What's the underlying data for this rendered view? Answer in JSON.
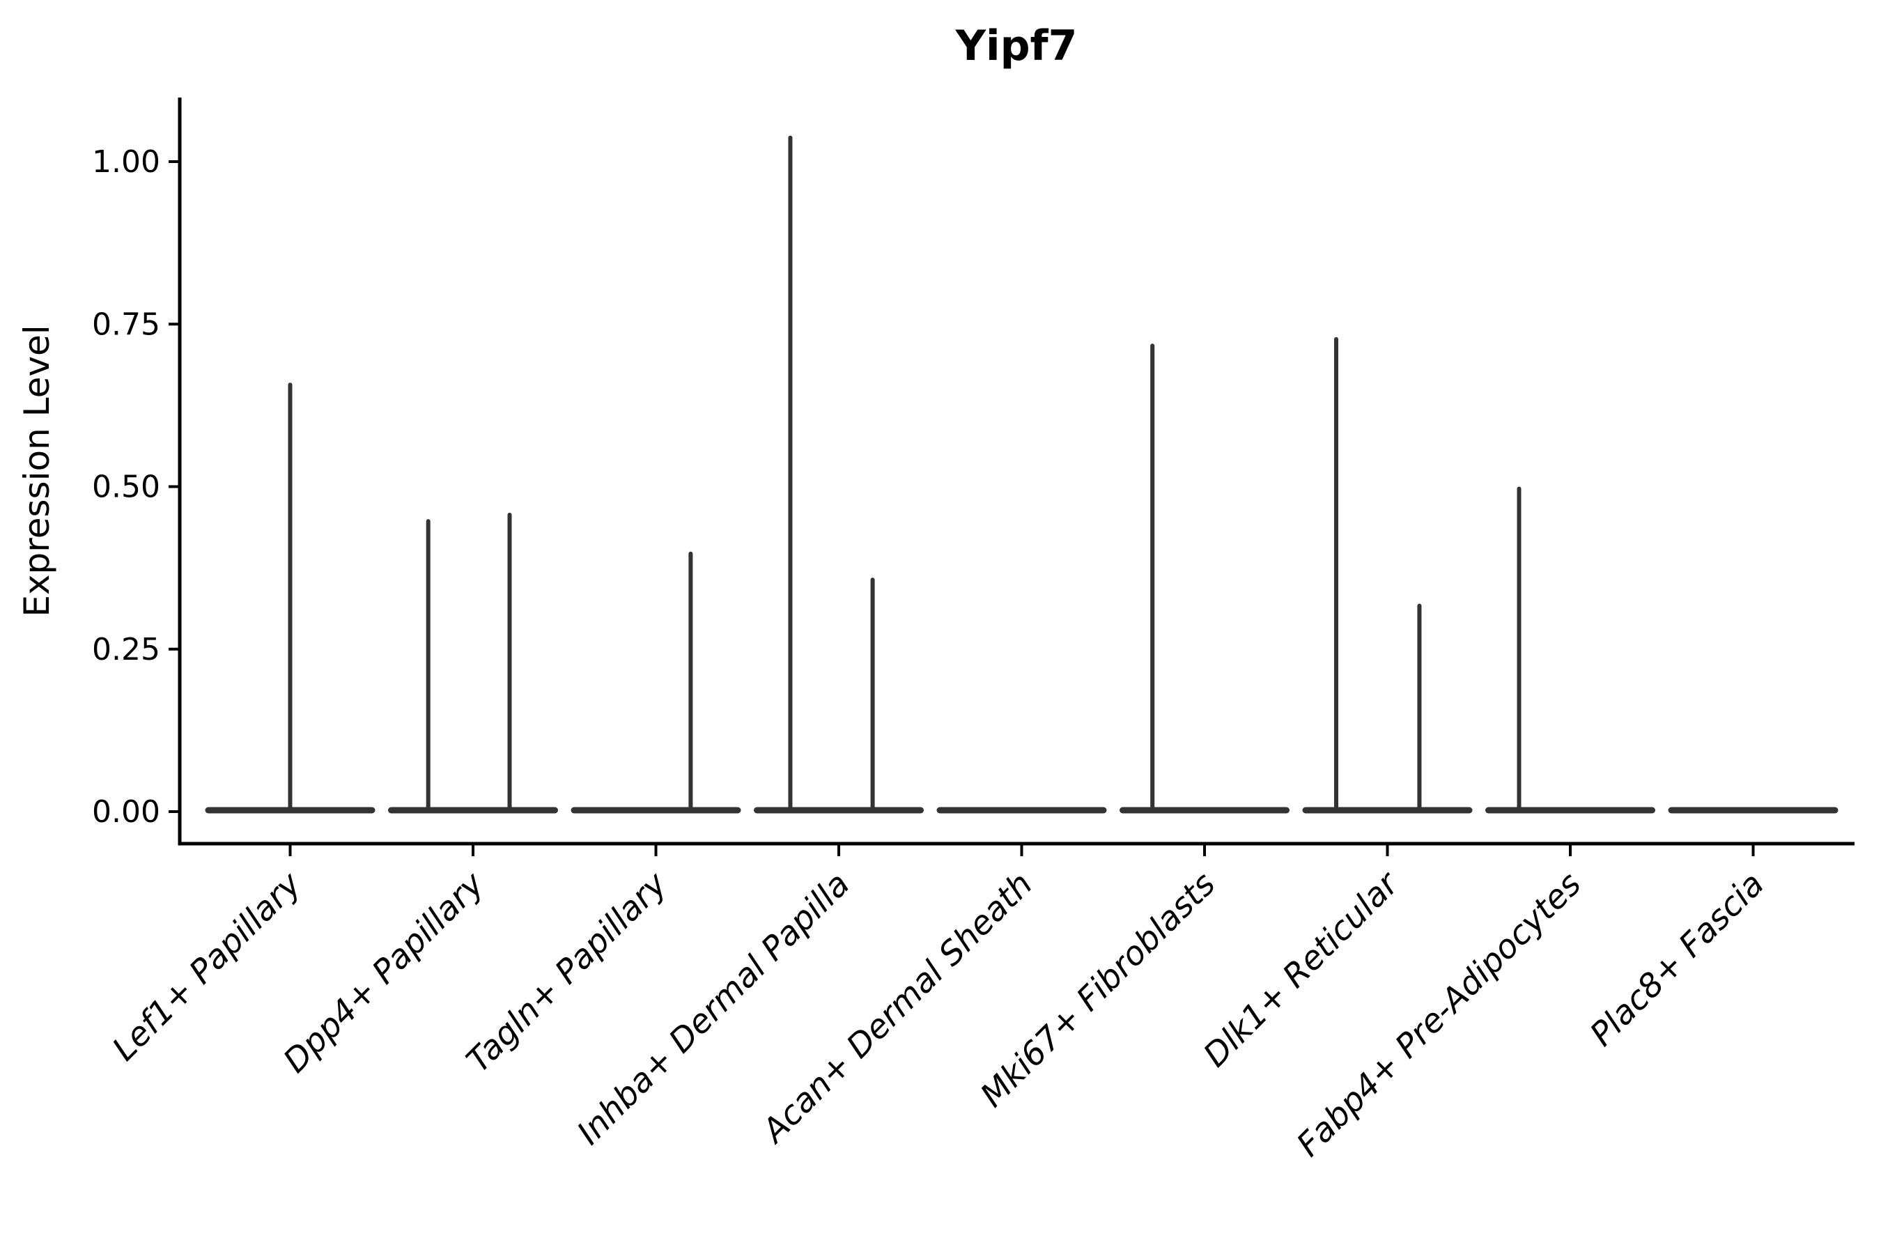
{
  "figure": {
    "background": "#ffffff"
  },
  "chart_data": {
    "type": "violin",
    "title": "Yipf7",
    "xlabel": "",
    "ylabel": "Expression Level",
    "ylim": [
      0,
      1.1
    ],
    "grid": false,
    "legend": null,
    "yticks": [
      {
        "value": 0.0,
        "label": "0.00"
      },
      {
        "value": 0.25,
        "label": "0.25"
      },
      {
        "value": 0.5,
        "label": "0.50"
      },
      {
        "value": 0.75,
        "label": "0.75"
      },
      {
        "value": 1.0,
        "label": "1.00"
      }
    ],
    "categories": [
      "Lef1+ Papillary",
      "Dpp4+ Papillary",
      "Tagln+ Papillary",
      "Inhba+ Dermal Papilla",
      "Acan+ Dermal Sheath",
      "Mki67+ Fibroblasts",
      "Dlk1+ Reticular",
      "Fabp4+ Pre-Adipocytes",
      "Plac8+ Fascia"
    ],
    "series": [
      {
        "category": "Lef1+ Papillary",
        "baseline_value": 0.0,
        "spikes": [
          {
            "value": 0.66,
            "offset_frac": 0.0
          }
        ]
      },
      {
        "category": "Dpp4+ Papillary",
        "baseline_value": 0.0,
        "spikes": [
          {
            "value": 0.45,
            "offset_frac": -0.245
          },
          {
            "value": 0.46,
            "offset_frac": 0.2
          }
        ]
      },
      {
        "category": "Tagln+ Papillary",
        "baseline_value": 0.0,
        "spikes": [
          {
            "value": 0.4,
            "offset_frac": 0.19
          }
        ]
      },
      {
        "category": "Inhba+ Dermal Papilla",
        "baseline_value": 0.0,
        "spikes": [
          {
            "value": 1.04,
            "offset_frac": -0.265
          },
          {
            "value": 0.36,
            "offset_frac": 0.185
          }
        ]
      },
      {
        "category": "Acan+ Dermal Sheath",
        "baseline_value": 0.0,
        "spikes": []
      },
      {
        "category": "Mki67+ Fibroblasts",
        "baseline_value": 0.0,
        "spikes": [
          {
            "value": 0.72,
            "offset_frac": -0.285
          }
        ]
      },
      {
        "category": "Dlk1+ Reticular",
        "baseline_value": 0.0,
        "spikes": [
          {
            "value": 0.73,
            "offset_frac": -0.28
          },
          {
            "value": 0.32,
            "offset_frac": 0.175
          }
        ]
      },
      {
        "category": "Fabp4+ Pre-Adipocytes",
        "baseline_value": 0.0,
        "spikes": [
          {
            "value": 0.5,
            "offset_frac": -0.28
          }
        ]
      },
      {
        "category": "Plac8+ Fascia",
        "baseline_value": 0.0,
        "spikes": []
      }
    ],
    "colors": {
      "violin": "#333333",
      "axis": "#000000",
      "text": "#000000",
      "background": "#ffffff"
    }
  }
}
